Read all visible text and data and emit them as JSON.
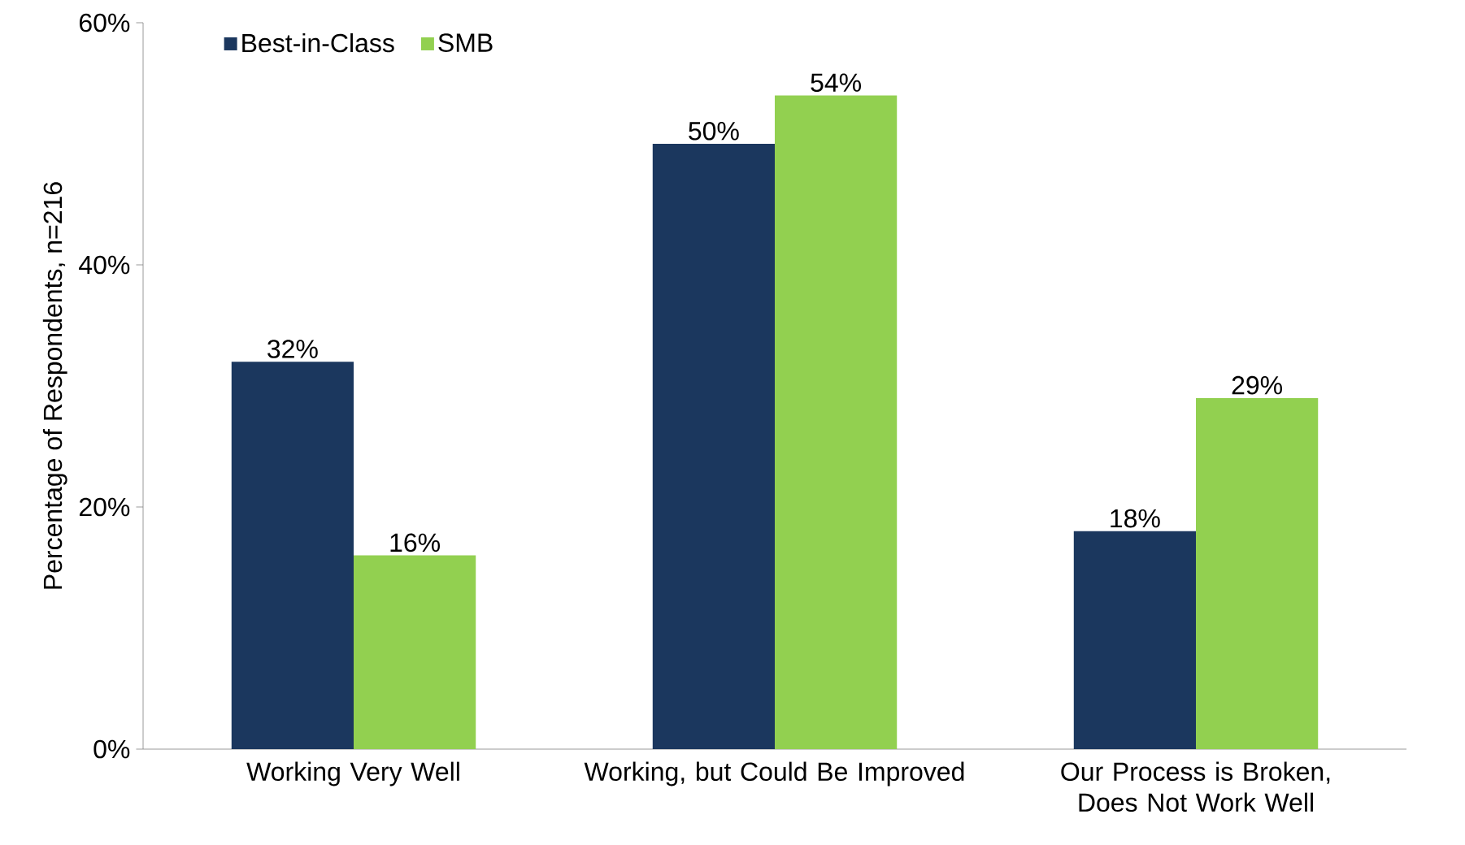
{
  "chart_data": {
    "type": "bar",
    "ylabel": "Percentage of Respondents, n=216",
    "categories": [
      "Working Very Well",
      "Working, but Could Be Improved",
      "Our Process is Broken, Does Not Work Well"
    ],
    "series": [
      {
        "name": "Best-in-Class",
        "color": "#1b375e",
        "values": [
          32,
          50,
          18
        ],
        "value_labels": [
          "32%",
          "50%",
          "18%"
        ]
      },
      {
        "name": "SMB",
        "color": "#92d050",
        "values": [
          16,
          54,
          29
        ],
        "value_labels": [
          "16%",
          "54%",
          "29%"
        ]
      }
    ],
    "ylim": [
      0,
      60
    ],
    "yticks": [
      {
        "value": 0,
        "label": "0%"
      },
      {
        "value": 20,
        "label": "20%"
      },
      {
        "value": 40,
        "label": "40%"
      },
      {
        "value": 60,
        "label": "60%"
      }
    ],
    "grid": false,
    "legend": "top left"
  }
}
